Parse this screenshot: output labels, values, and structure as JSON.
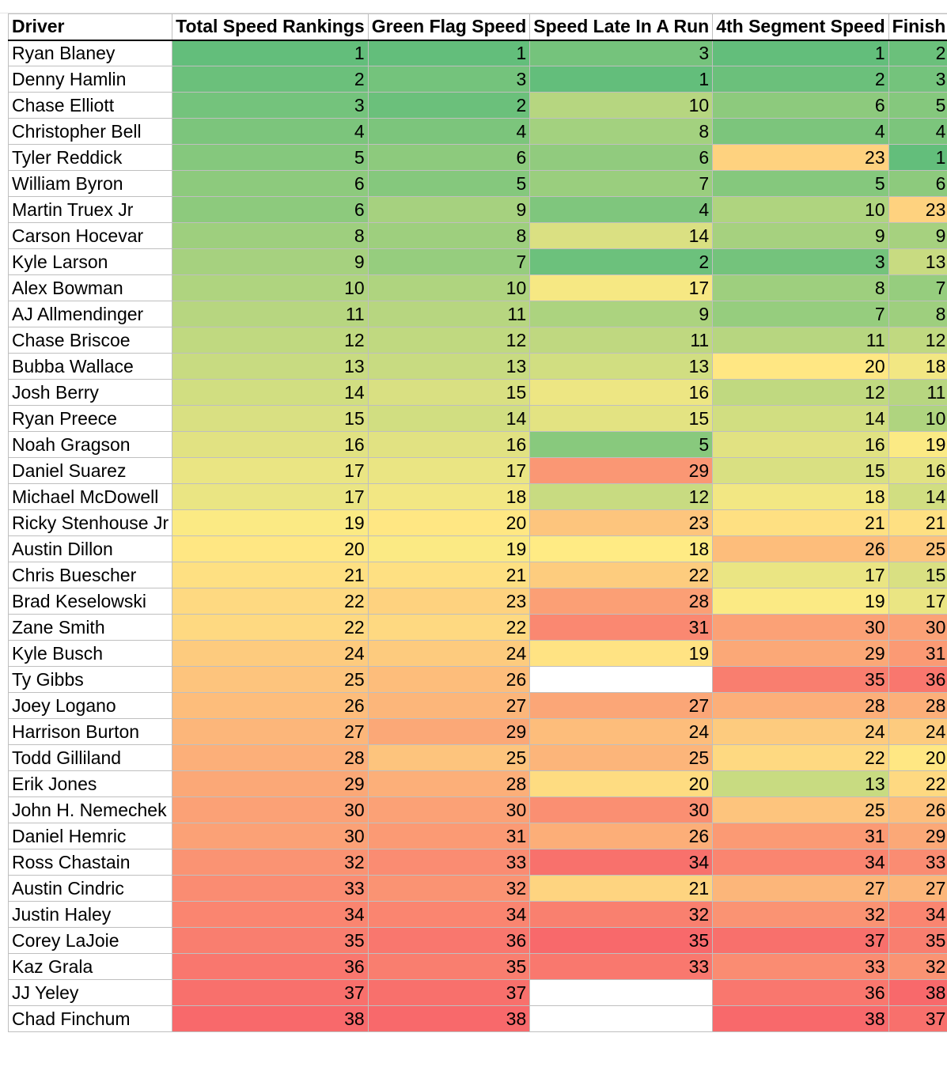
{
  "columns": [
    "Driver",
    "Total Speed Rankings",
    "Green Flag Speed",
    "Speed Late In A Run",
    "4th Segment Speed",
    "Finish"
  ],
  "column_max": [
    38,
    38,
    35,
    38,
    38
  ],
  "scale_colors": {
    "low": "#63be7b",
    "mid": "#ffeb84",
    "high": "#f8696b",
    "empty": "#ffffff"
  },
  "rows": [
    {
      "driver": "Ryan Blaney",
      "values": [
        1,
        1,
        3,
        1,
        2
      ]
    },
    {
      "driver": "Denny Hamlin",
      "values": [
        2,
        3,
        1,
        2,
        3
      ]
    },
    {
      "driver": "Chase Elliott",
      "values": [
        3,
        2,
        10,
        6,
        5
      ]
    },
    {
      "driver": "Christopher Bell",
      "values": [
        4,
        4,
        8,
        4,
        4
      ]
    },
    {
      "driver": "Tyler Reddick",
      "values": [
        5,
        6,
        6,
        23,
        1
      ]
    },
    {
      "driver": "William Byron",
      "values": [
        6,
        5,
        7,
        5,
        6
      ]
    },
    {
      "driver": "Martin Truex Jr",
      "values": [
        6,
        9,
        4,
        10,
        23
      ]
    },
    {
      "driver": "Carson Hocevar",
      "values": [
        8,
        8,
        14,
        9,
        9
      ]
    },
    {
      "driver": "Kyle Larson",
      "values": [
        9,
        7,
        2,
        3,
        13
      ]
    },
    {
      "driver": "Alex Bowman",
      "values": [
        10,
        10,
        17,
        8,
        7
      ]
    },
    {
      "driver": "AJ Allmendinger",
      "values": [
        11,
        11,
        9,
        7,
        8
      ]
    },
    {
      "driver": "Chase Briscoe",
      "values": [
        12,
        12,
        11,
        11,
        12
      ]
    },
    {
      "driver": "Bubba Wallace",
      "values": [
        13,
        13,
        13,
        20,
        18
      ]
    },
    {
      "driver": "Josh Berry",
      "values": [
        14,
        15,
        16,
        12,
        11
      ]
    },
    {
      "driver": "Ryan Preece",
      "values": [
        15,
        14,
        15,
        14,
        10
      ]
    },
    {
      "driver": "Noah Gragson",
      "values": [
        16,
        16,
        5,
        16,
        19
      ]
    },
    {
      "driver": "Daniel Suarez",
      "values": [
        17,
        17,
        29,
        15,
        16
      ]
    },
    {
      "driver": "Michael McDowell",
      "values": [
        17,
        18,
        12,
        18,
        14
      ]
    },
    {
      "driver": "Ricky Stenhouse Jr",
      "values": [
        19,
        20,
        23,
        21,
        21
      ]
    },
    {
      "driver": "Austin Dillon",
      "values": [
        20,
        19,
        18,
        26,
        25
      ]
    },
    {
      "driver": "Chris Buescher",
      "values": [
        21,
        21,
        22,
        17,
        15
      ]
    },
    {
      "driver": "Brad Keselowski",
      "values": [
        22,
        23,
        28,
        19,
        17
      ]
    },
    {
      "driver": "Zane Smith",
      "values": [
        22,
        22,
        31,
        30,
        30
      ]
    },
    {
      "driver": "Kyle Busch",
      "values": [
        24,
        24,
        19,
        29,
        31
      ]
    },
    {
      "driver": "Ty Gibbs",
      "values": [
        25,
        26,
        null,
        35,
        36
      ]
    },
    {
      "driver": "Joey Logano",
      "values": [
        26,
        27,
        27,
        28,
        28
      ]
    },
    {
      "driver": "Harrison Burton",
      "values": [
        27,
        29,
        24,
        24,
        24
      ]
    },
    {
      "driver": "Todd Gilliland",
      "values": [
        28,
        25,
        25,
        22,
        20
      ]
    },
    {
      "driver": "Erik Jones",
      "values": [
        29,
        28,
        20,
        13,
        22
      ]
    },
    {
      "driver": "John H. Nemechek",
      "values": [
        30,
        30,
        30,
        25,
        26
      ]
    },
    {
      "driver": "Daniel Hemric",
      "values": [
        30,
        31,
        26,
        31,
        29
      ]
    },
    {
      "driver": "Ross Chastain",
      "values": [
        32,
        33,
        34,
        34,
        33
      ]
    },
    {
      "driver": "Austin Cindric",
      "values": [
        33,
        32,
        21,
        27,
        27
      ]
    },
    {
      "driver": "Justin Haley",
      "values": [
        34,
        34,
        32,
        32,
        34
      ]
    },
    {
      "driver": "Corey LaJoie",
      "values": [
        35,
        36,
        35,
        37,
        35
      ]
    },
    {
      "driver": "Kaz Grala",
      "values": [
        36,
        35,
        33,
        33,
        32
      ]
    },
    {
      "driver": "JJ Yeley",
      "values": [
        37,
        37,
        null,
        36,
        38
      ]
    },
    {
      "driver": "Chad Finchum",
      "values": [
        38,
        38,
        null,
        38,
        37
      ]
    }
  ]
}
